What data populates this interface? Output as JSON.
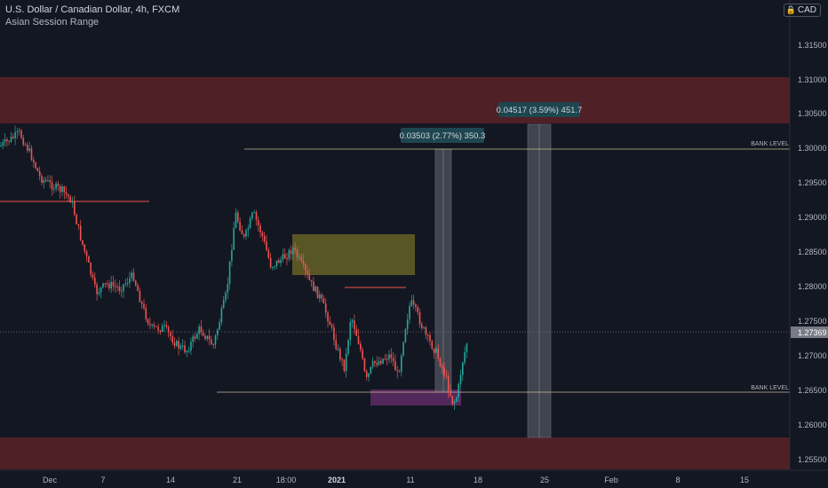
{
  "header": {
    "symbol_title": "U.S. Dollar / Canadian Dollar, 4h, FXCM",
    "indicator": "Asian Session Range"
  },
  "currency_badge": {
    "label": "CAD",
    "icon": "lock-icon"
  },
  "price_axis": {
    "ticks": [
      "1.31500",
      "1.31000",
      "1.30500",
      "1.30000",
      "1.29500",
      "1.29000",
      "1.28500",
      "1.28000",
      "1.27500",
      "1.27000",
      "1.26500",
      "1.26000",
      "1.25500"
    ],
    "current_price": "1.27369"
  },
  "time_axis": {
    "ticks": [
      "Dec",
      "7",
      "14",
      "21",
      "18:00",
      "2021",
      "11",
      "18",
      "25",
      "Feb",
      "8",
      "15"
    ]
  },
  "annotations": {
    "bank_level_label_upper": "BANK LEVEL",
    "bank_level_label_lower": "BANK LEVEL",
    "measure_1": "0.03503 (2.77%) 350.3",
    "measure_2": "0.04517 (3.59%) 451.7"
  },
  "colors": {
    "background": "#131722",
    "supply_zone": "#5c2228",
    "orderblock": "#716c28",
    "demand_box": "#5b2a63",
    "bull_candle": "#26a69a",
    "bear_candle": "#ef5350",
    "bank_line": "#c9b99a",
    "measure_fill": "#545861",
    "tooltip_bg": "#1e4650"
  }
}
